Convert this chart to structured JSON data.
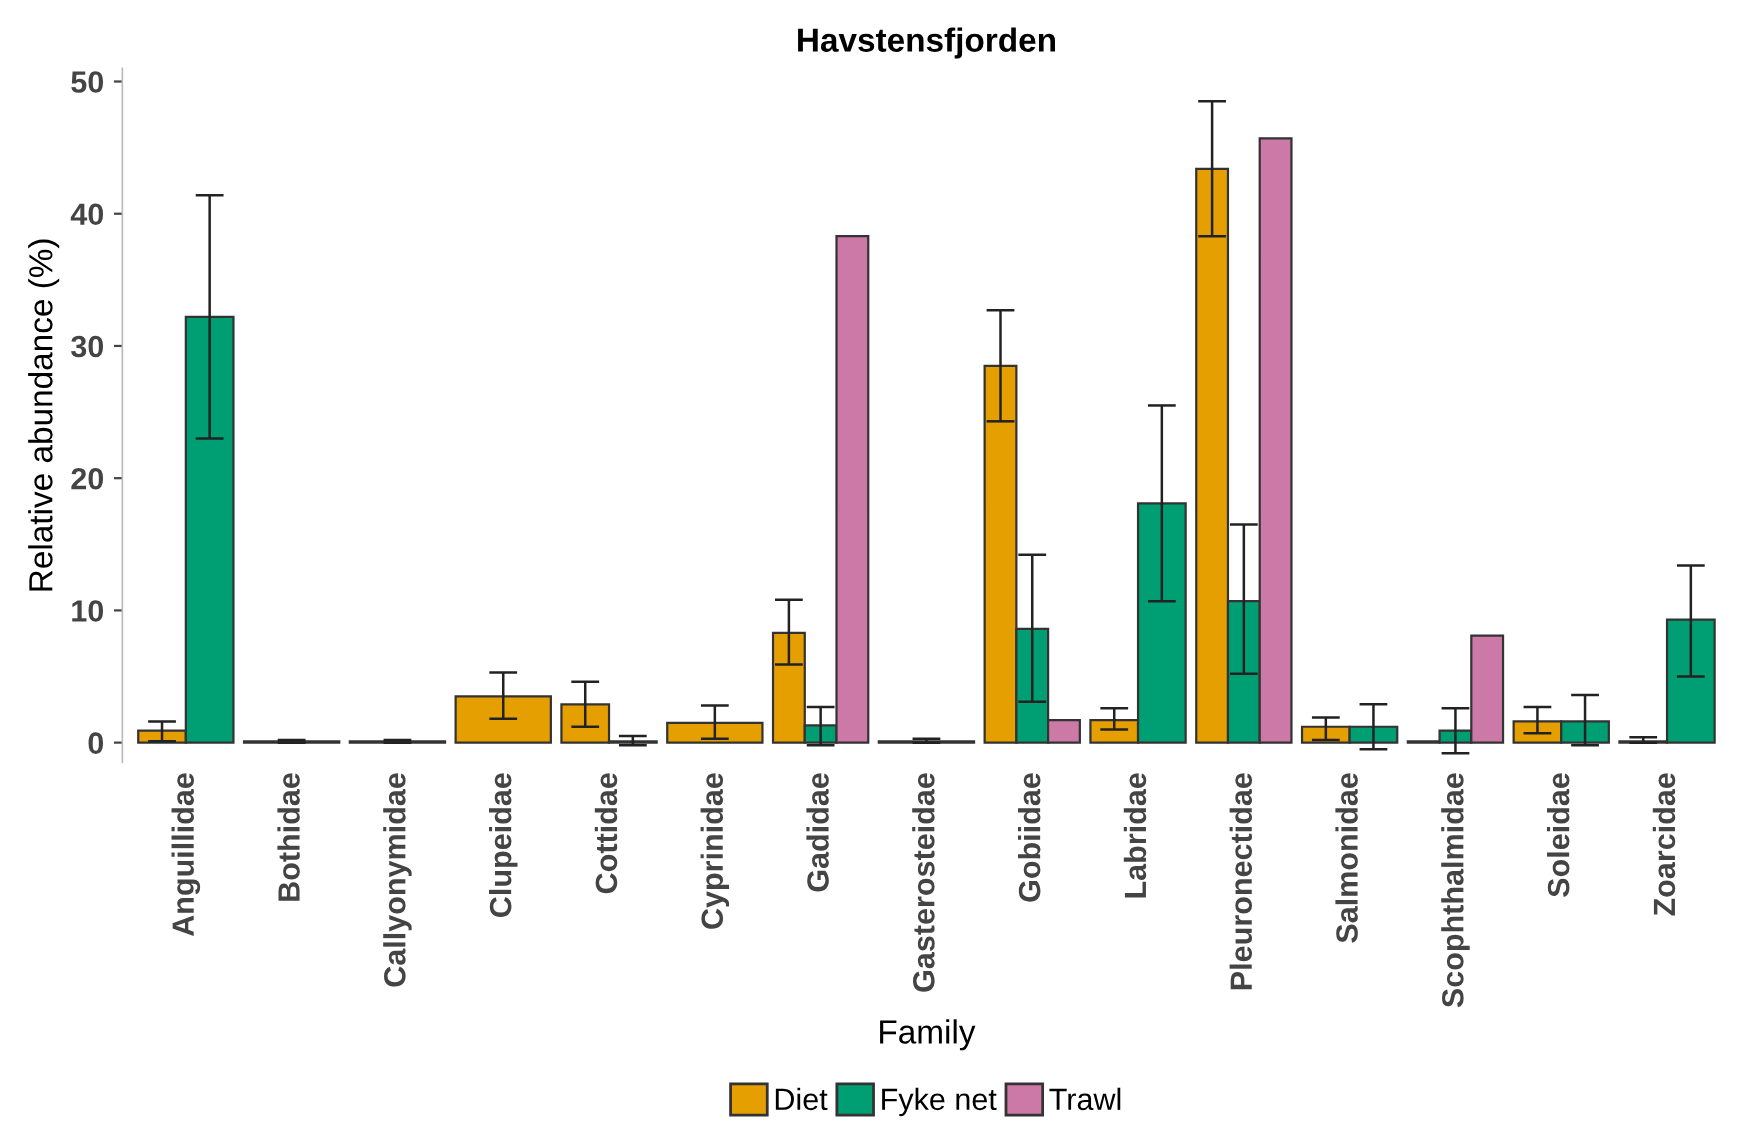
{
  "chart_data": {
    "type": "bar",
    "title": "Havstensfjorden",
    "xlabel": "Family",
    "ylabel": "Relative abundance (%)",
    "categories": [
      "Anguillidae",
      "Bothidae",
      "Callyonymidae",
      "Clupeidae",
      "Cottidae",
      "Cyprinidae",
      "Gadidae",
      "Gasterosteidae",
      "Gobiidae",
      "Labridae",
      "Pleuronectidae",
      "Salmonidae",
      "Scophthalmidae",
      "Soleidae",
      "Zoarcidae"
    ],
    "series": [
      {
        "name": "Diet",
        "color": "#e69f00",
        "values": [
          0.9,
          0.1,
          0.1,
          3.5,
          2.9,
          1.5,
          8.3,
          0.1,
          28.5,
          1.7,
          43.4,
          1.2,
          0.1,
          1.6,
          0.1
        ],
        "errors": [
          [
            0.1,
            1.6
          ],
          [
            0.0,
            0.2
          ],
          [
            0.0,
            0.2
          ],
          [
            1.8,
            5.3
          ],
          [
            1.2,
            4.6
          ],
          [
            0.3,
            2.8
          ],
          [
            5.9,
            10.8
          ],
          [
            0.0,
            0.3
          ],
          [
            24.3,
            32.7
          ],
          [
            1.0,
            2.6
          ],
          [
            38.3,
            48.5
          ],
          [
            0.2,
            1.9
          ],
          null,
          [
            0.7,
            2.7
          ],
          [
            0.0,
            0.4
          ]
        ]
      },
      {
        "name": "Fyke net",
        "color": "#009e73",
        "values": [
          32.2,
          null,
          null,
          null,
          0.1,
          null,
          1.3,
          null,
          8.6,
          18.1,
          10.7,
          1.2,
          0.9,
          1.6,
          9.3
        ],
        "errors": [
          [
            23.0,
            41.4
          ],
          null,
          null,
          null,
          [
            -0.2,
            0.5
          ],
          null,
          [
            -0.2,
            2.7
          ],
          null,
          [
            3.1,
            14.2
          ],
          [
            10.7,
            25.5
          ],
          [
            5.2,
            16.5
          ],
          [
            -0.5,
            2.9
          ],
          [
            -0.8,
            2.6
          ],
          [
            -0.2,
            3.6
          ],
          [
            5.0,
            13.4
          ]
        ]
      },
      {
        "name": "Trawl",
        "color": "#cc79a7",
        "values": [
          null,
          null,
          null,
          null,
          null,
          null,
          38.3,
          null,
          1.7,
          null,
          45.7,
          null,
          8.1,
          null,
          null
        ],
        "errors": [
          null,
          null,
          null,
          null,
          null,
          null,
          null,
          null,
          null,
          null,
          null,
          null,
          null,
          null,
          null
        ]
      }
    ],
    "ylim": [
      -1.5,
      51
    ],
    "yticks": [
      0,
      10,
      20,
      30,
      40,
      50
    ],
    "grid": false,
    "legend": "bottom"
  }
}
